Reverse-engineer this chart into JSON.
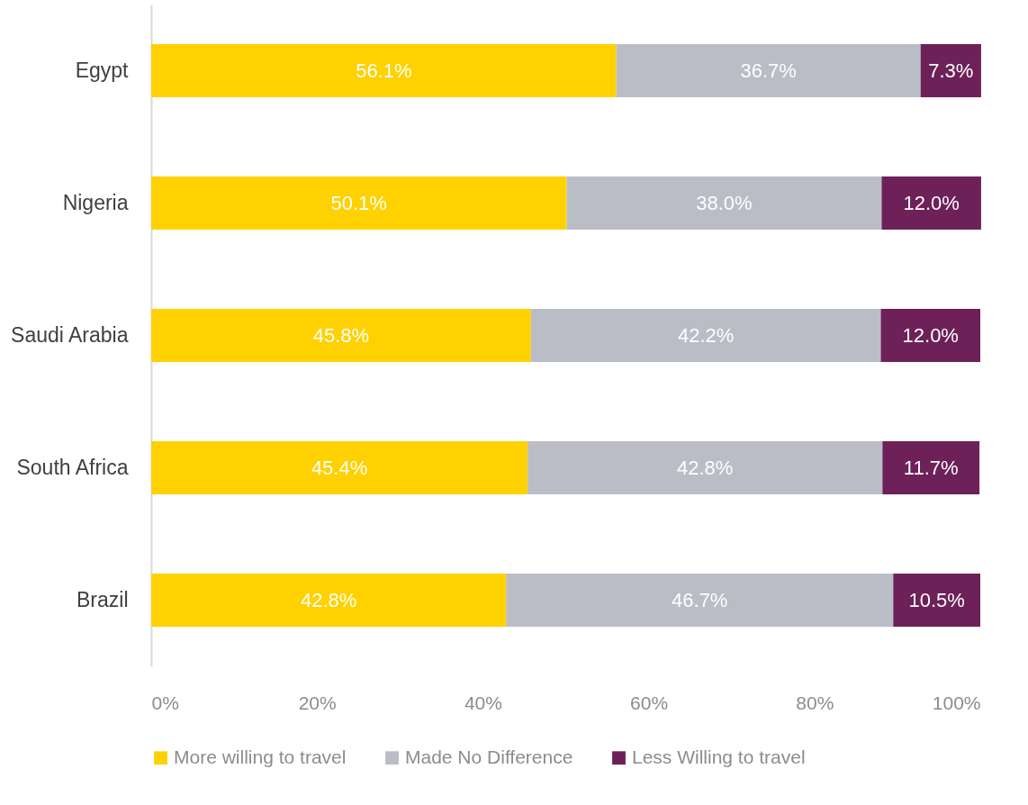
{
  "chart_data": {
    "type": "bar",
    "orientation": "horizontal",
    "stacked": true,
    "categories": [
      "Egypt",
      "Nigeria",
      "Saudi Arabia",
      "South Africa",
      "Brazil"
    ],
    "series": [
      {
        "name": "More willing to travel",
        "color": "#ffd100",
        "values": [
          56.1,
          50.1,
          45.8,
          45.4,
          42.8
        ],
        "value_labels": [
          "56.1%",
          "50.1%",
          "45.8%",
          "45.4%",
          "42.8%"
        ]
      },
      {
        "name": "Made No Difference",
        "color": "#bbbdc6",
        "values": [
          36.7,
          38.0,
          42.2,
          42.8,
          46.7
        ],
        "value_labels": [
          "36.7%",
          "38.0%",
          "42.2%",
          "42.8%",
          "46.7%"
        ]
      },
      {
        "name": "Less Willing to travel",
        "color": "#6d2158",
        "values": [
          7.3,
          12.0,
          12.0,
          11.7,
          10.5
        ],
        "value_labels": [
          "7.3%",
          "12.0%",
          "12.0%",
          "11.7%",
          "10.5%"
        ]
      }
    ],
    "xlim": [
      0,
      100
    ],
    "xticks": [
      {
        "value": 0,
        "label": "0%"
      },
      {
        "value": 20,
        "label": "20%"
      },
      {
        "value": 40,
        "label": "40%"
      },
      {
        "value": 60,
        "label": "60%"
      },
      {
        "value": 80,
        "label": "80%"
      },
      {
        "value": 100,
        "label": "100%"
      }
    ],
    "grid": false,
    "legend": "bottom"
  }
}
